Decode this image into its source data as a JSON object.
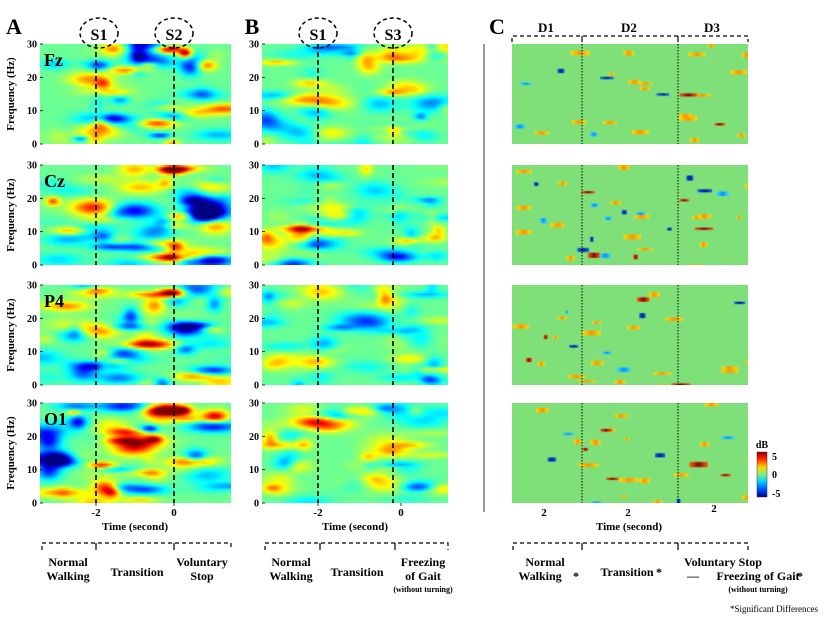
{
  "chart_data": {
    "type": "heatmap",
    "panel_letters": [
      "A",
      "B",
      "C"
    ],
    "channels": [
      "Fz",
      "Cz",
      "P4",
      "O1"
    ],
    "axes": {
      "ylabel": "Frequency (Hz)",
      "yticks": [
        "0",
        "10",
        "20",
        "30"
      ],
      "xlabel": "Time (second)",
      "panel_A_xticks": [
        "-2",
        "0"
      ],
      "panel_B_xticks": [
        "-2",
        "0"
      ],
      "panel_C_xticks": [
        "2",
        "2",
        "2"
      ],
      "ylim": [
        0,
        30
      ]
    },
    "panel_A": {
      "event_markers": [
        "S1",
        "S2"
      ],
      "segments": [
        "Normal Walking",
        "Transition",
        "Voluntary Stop"
      ]
    },
    "panel_B": {
      "event_markers": [
        "S1",
        "S3"
      ],
      "segments": [
        "Normal Walking",
        "Transition",
        "Freezing of Gait"
      ],
      "segment_note": "(without turning)"
    },
    "panel_C": {
      "blocks": [
        "D1",
        "D2",
        "D3"
      ],
      "segments": [
        "Normal Walking",
        "Transition",
        "Voluntary Stop",
        "Freezing of Gait"
      ],
      "significance_mark": "*",
      "segment_note": "(without turning)",
      "legend_separator": "—"
    },
    "colorbar": {
      "label": "dB",
      "ticks": [
        "5",
        "0",
        "-5"
      ],
      "range": [
        -5,
        5
      ]
    },
    "footnote": "*Significant Differences"
  },
  "colors": {
    "normal_walking": "#2ca02c",
    "transition": "#3a5fa8",
    "voluntary_stop": "#c00000",
    "freezing": "#c00000",
    "divider": "#999999"
  }
}
